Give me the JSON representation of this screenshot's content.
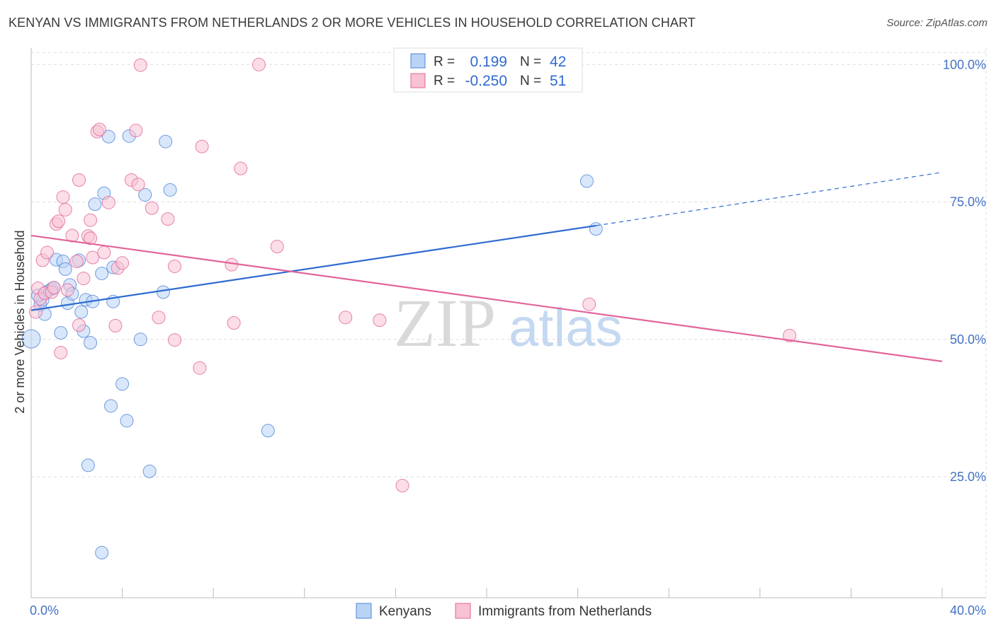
{
  "title": "KENYAN VS IMMIGRANTS FROM NETHERLANDS 2 OR MORE VEHICLES IN HOUSEHOLD CORRELATION CHART",
  "source": "Source: ZipAtlas.com",
  "watermark": {
    "zip": "ZIP",
    "atlas": "atlas"
  },
  "colors": {
    "blue": "#4f86d8",
    "blue_fill": "#b9d3f5",
    "pink": "#e2649a",
    "pink_fill": "#f8c2d4",
    "tick": "#4472c4"
  },
  "legend": {
    "r_label": "R =",
    "n_label": "N =",
    "rows": [
      {
        "series": "Kenyans",
        "r": "0.199",
        "n": "42"
      },
      {
        "series": "Immigrants from Netherlands",
        "r": "-0.250",
        "n": "51"
      }
    ]
  },
  "bottom_legend": [
    "Kenyans",
    "Immigrants from Netherlands"
  ],
  "chart_data": {
    "type": "scatter",
    "title": "KENYAN VS IMMIGRANTS FROM NETHERLANDS 2 OR MORE VEHICLES IN HOUSEHOLD CORRELATION CHART",
    "xlabel": "",
    "ylabel": "2 or more Vehicles in Household",
    "xlim": [
      0,
      40
    ],
    "ylim": [
      3,
      103
    ],
    "x_tick_labels": [
      "0.0%",
      "40.0%"
    ],
    "y_ticks": [
      {
        "value": 25,
        "label": "25.0%"
      },
      {
        "value": 50,
        "label": "50.0%"
      },
      {
        "value": 75,
        "label": "75.0%"
      },
      {
        "value": 100,
        "label": "100.0%"
      }
    ],
    "grid": true,
    "series": [
      {
        "name": "Kenyans",
        "color": "blue",
        "trend": {
          "x0": 0,
          "y0": 55.3,
          "x1": 24.8,
          "y1": 70.7,
          "dash_to_x": 40,
          "dash_to_y": 80.4
        },
        "points": [
          [
            0.0,
            50.1
          ],
          [
            0.4,
            56.3
          ],
          [
            0.5,
            57.2
          ],
          [
            0.6,
            54.6
          ],
          [
            0.7,
            58.7
          ],
          [
            0.9,
            59.2
          ],
          [
            1.1,
            64.5
          ],
          [
            1.3,
            51.2
          ],
          [
            1.4,
            64.2
          ],
          [
            1.5,
            62.8
          ],
          [
            1.6,
            56.6
          ],
          [
            1.7,
            59.9
          ],
          [
            1.8,
            58.3
          ],
          [
            2.1,
            64.4
          ],
          [
            2.2,
            55.0
          ],
          [
            2.3,
            51.5
          ],
          [
            2.4,
            57.2
          ],
          [
            2.5,
            27.1
          ],
          [
            2.6,
            49.4
          ],
          [
            2.7,
            56.9
          ],
          [
            2.8,
            74.6
          ],
          [
            3.1,
            11.2
          ],
          [
            3.1,
            62.0
          ],
          [
            3.2,
            76.6
          ],
          [
            3.4,
            86.9
          ],
          [
            3.5,
            37.9
          ],
          [
            3.6,
            56.9
          ],
          [
            3.6,
            63.1
          ],
          [
            4.0,
            41.9
          ],
          [
            4.2,
            35.2
          ],
          [
            4.3,
            87.0
          ],
          [
            4.8,
            50.0
          ],
          [
            5.0,
            76.3
          ],
          [
            5.2,
            26.0
          ],
          [
            5.8,
            58.6
          ],
          [
            5.9,
            86.0
          ],
          [
            6.1,
            77.2
          ],
          [
            10.4,
            33.4
          ],
          [
            24.4,
            78.8
          ],
          [
            24.8,
            70.1
          ],
          [
            0.3,
            58.0
          ],
          [
            1.0,
            59.4
          ]
        ]
      },
      {
        "name": "Immigrants from Netherlands",
        "color": "pink",
        "trend": {
          "x0": 0,
          "y0": 68.9,
          "x1": 40,
          "y1": 46.0
        },
        "points": [
          [
            0.2,
            55.0
          ],
          [
            0.3,
            59.3
          ],
          [
            0.4,
            57.4
          ],
          [
            0.5,
            64.4
          ],
          [
            0.6,
            58.4
          ],
          [
            0.7,
            65.8
          ],
          [
            0.9,
            58.6
          ],
          [
            1.0,
            59.4
          ],
          [
            1.1,
            71.0
          ],
          [
            1.2,
            71.5
          ],
          [
            1.3,
            47.6
          ],
          [
            1.4,
            75.9
          ],
          [
            1.5,
            73.6
          ],
          [
            1.6,
            59.0
          ],
          [
            1.8,
            68.9
          ],
          [
            2.0,
            64.2
          ],
          [
            2.1,
            52.6
          ],
          [
            2.1,
            79.0
          ],
          [
            2.3,
            61.1
          ],
          [
            2.5,
            68.8
          ],
          [
            2.6,
            68.4
          ],
          [
            2.6,
            71.7
          ],
          [
            2.7,
            64.9
          ],
          [
            2.9,
            87.8
          ],
          [
            3.0,
            88.2
          ],
          [
            3.2,
            65.8
          ],
          [
            3.4,
            74.9
          ],
          [
            3.7,
            52.5
          ],
          [
            3.8,
            63.0
          ],
          [
            4.0,
            63.9
          ],
          [
            4.4,
            79.0
          ],
          [
            4.6,
            88.0
          ],
          [
            4.7,
            78.2
          ],
          [
            4.8,
            99.9
          ],
          [
            5.3,
            73.9
          ],
          [
            5.6,
            54.0
          ],
          [
            6.0,
            71.9
          ],
          [
            6.3,
            49.9
          ],
          [
            6.3,
            63.3
          ],
          [
            7.4,
            44.8
          ],
          [
            7.5,
            85.1
          ],
          [
            8.8,
            63.6
          ],
          [
            8.9,
            53.0
          ],
          [
            9.2,
            81.1
          ],
          [
            10.0,
            100.0
          ],
          [
            10.8,
            66.9
          ],
          [
            13.8,
            54.0
          ],
          [
            15.3,
            53.5
          ],
          [
            16.3,
            23.4
          ],
          [
            24.5,
            56.4
          ],
          [
            33.3,
            50.7
          ]
        ]
      }
    ]
  }
}
